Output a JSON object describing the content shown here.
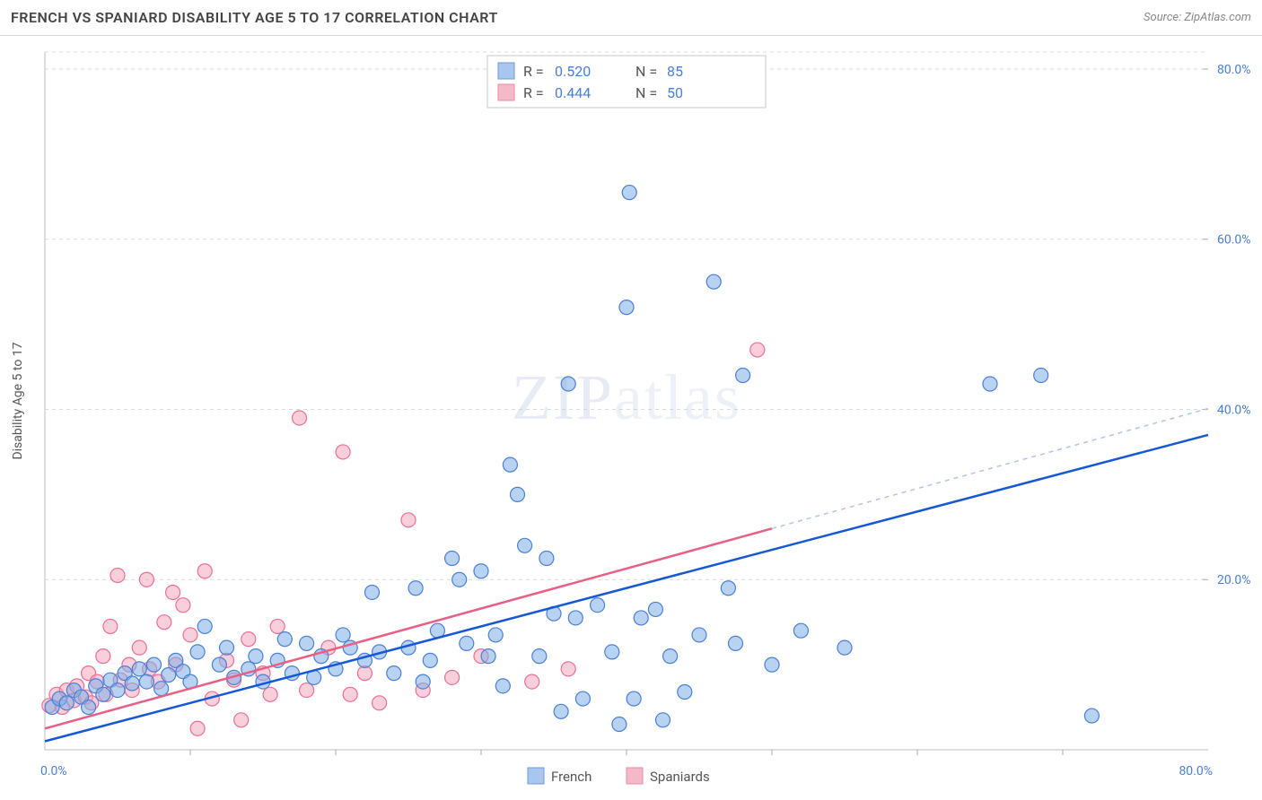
{
  "header": {
    "title": "FRENCH VS SPANIARD DISABILITY AGE 5 TO 17 CORRELATION CHART",
    "source": "Source: ZipAtlas.com"
  },
  "watermark": {
    "part1": "ZIP",
    "part2": "atlas"
  },
  "chart": {
    "type": "scatter",
    "y_axis_label": "Disability Age 5 to 17",
    "xlim": [
      0,
      80
    ],
    "ylim": [
      0,
      82
    ],
    "x_tick_step": 10,
    "y_ticks": [
      20,
      40,
      60,
      80
    ],
    "tick_format_suffix": ".0%",
    "origin_label": "0.0%",
    "x_end_label": "80.0%",
    "background": "#ffffff",
    "grid_color": "#d9d9d9",
    "marker_radius": 8,
    "stats": {
      "r_label": "R =",
      "n_label": "N =",
      "blue": {
        "r": "0.520",
        "n": "85"
      },
      "pink": {
        "r": "0.444",
        "n": "50"
      }
    },
    "legend": {
      "blue_label": "French",
      "pink_label": "Spaniards"
    },
    "series_blue": {
      "color_fill": "#7eaee8",
      "color_stroke": "#4a7fd6",
      "trend": {
        "x1": 0,
        "y1": 1.0,
        "x2": 80,
        "y2": 37.0,
        "color": "#1558d6",
        "width": 2.5
      },
      "points": [
        [
          0.5,
          5
        ],
        [
          1,
          6
        ],
        [
          1.5,
          5.5
        ],
        [
          2,
          7
        ],
        [
          2.5,
          6.2
        ],
        [
          3,
          5
        ],
        [
          3.5,
          7.5
        ],
        [
          4,
          6.5
        ],
        [
          4.5,
          8.2
        ],
        [
          5,
          7
        ],
        [
          5.5,
          9
        ],
        [
          6,
          7.8
        ],
        [
          6.5,
          9.5
        ],
        [
          7,
          8
        ],
        [
          7.5,
          10
        ],
        [
          8,
          7.2
        ],
        [
          8.5,
          8.8
        ],
        [
          9,
          10.5
        ],
        [
          9.5,
          9.2
        ],
        [
          10,
          8
        ],
        [
          10.5,
          11.5
        ],
        [
          11,
          14.5
        ],
        [
          12,
          10
        ],
        [
          12.5,
          12
        ],
        [
          13,
          8.5
        ],
        [
          14,
          9.5
        ],
        [
          14.5,
          11
        ],
        [
          15,
          8
        ],
        [
          16,
          10.5
        ],
        [
          16.5,
          13
        ],
        [
          17,
          9
        ],
        [
          18,
          12.5
        ],
        [
          18.5,
          8.5
        ],
        [
          19,
          11
        ],
        [
          20,
          9.5
        ],
        [
          20.5,
          13.5
        ],
        [
          21,
          12
        ],
        [
          22,
          10.5
        ],
        [
          22.5,
          18.5
        ],
        [
          23,
          11.5
        ],
        [
          24,
          9
        ],
        [
          25,
          12
        ],
        [
          25.5,
          19
        ],
        [
          26,
          8
        ],
        [
          26.5,
          10.5
        ],
        [
          27,
          14
        ],
        [
          28,
          22.5
        ],
        [
          28.5,
          20
        ],
        [
          29,
          12.5
        ],
        [
          30,
          21
        ],
        [
          30.5,
          11
        ],
        [
          31,
          13.5
        ],
        [
          31.5,
          7.5
        ],
        [
          32,
          33.5
        ],
        [
          32.5,
          30
        ],
        [
          33,
          24
        ],
        [
          34,
          11
        ],
        [
          34.5,
          22.5
        ],
        [
          35,
          16
        ],
        [
          35.5,
          4.5
        ],
        [
          36,
          43
        ],
        [
          36.5,
          15.5
        ],
        [
          37,
          6
        ],
        [
          38,
          17
        ],
        [
          39,
          11.5
        ],
        [
          39.5,
          3
        ],
        [
          40,
          52
        ],
        [
          40.2,
          65.5
        ],
        [
          40.5,
          6
        ],
        [
          41,
          15.5
        ],
        [
          42,
          16.5
        ],
        [
          42.5,
          3.5
        ],
        [
          43,
          11
        ],
        [
          44,
          6.8
        ],
        [
          45,
          13.5
        ],
        [
          46,
          55
        ],
        [
          47,
          19
        ],
        [
          48,
          44
        ],
        [
          50,
          10
        ],
        [
          52,
          14
        ],
        [
          55,
          12
        ],
        [
          65,
          43
        ],
        [
          68.5,
          44
        ],
        [
          72,
          4
        ],
        [
          47.5,
          12.5
        ]
      ]
    },
    "series_pink": {
      "color_fill": "#f2a8bb",
      "color_stroke": "#eb6f94",
      "trend": {
        "x1": 0,
        "y1": 2.5,
        "x2": 50,
        "y2": 26.0,
        "color": "#e85f85",
        "width": 2.5
      },
      "points": [
        [
          0.3,
          5.2
        ],
        [
          0.8,
          6.5
        ],
        [
          1.2,
          5
        ],
        [
          1.5,
          7
        ],
        [
          2,
          5.8
        ],
        [
          2.2,
          7.5
        ],
        [
          2.8,
          6.2
        ],
        [
          3,
          9
        ],
        [
          3.2,
          5.5
        ],
        [
          3.6,
          8
        ],
        [
          4,
          11
        ],
        [
          4.2,
          6.5
        ],
        [
          4.5,
          14.5
        ],
        [
          5,
          20.5
        ],
        [
          5.2,
          8.2
        ],
        [
          5.8,
          10
        ],
        [
          6,
          7
        ],
        [
          6.5,
          12
        ],
        [
          7,
          20
        ],
        [
          7.2,
          9.5
        ],
        [
          7.8,
          8
        ],
        [
          8.2,
          15
        ],
        [
          8.8,
          18.5
        ],
        [
          9,
          10
        ],
        [
          9.5,
          17
        ],
        [
          10,
          13.5
        ],
        [
          10.5,
          2.5
        ],
        [
          11,
          21
        ],
        [
          11.5,
          6
        ],
        [
          12.5,
          10.5
        ],
        [
          13,
          8.2
        ],
        [
          13.5,
          3.5
        ],
        [
          14,
          13
        ],
        [
          15,
          9
        ],
        [
          15.5,
          6.5
        ],
        [
          16,
          14.5
        ],
        [
          17.5,
          39
        ],
        [
          18,
          7
        ],
        [
          19.5,
          12
        ],
        [
          20.5,
          35
        ],
        [
          21,
          6.5
        ],
        [
          22,
          9
        ],
        [
          23,
          5.5
        ],
        [
          25,
          27
        ],
        [
          26,
          7
        ],
        [
          28,
          8.5
        ],
        [
          30,
          11
        ],
        [
          33.5,
          8
        ],
        [
          36,
          9.5
        ],
        [
          49,
          47
        ]
      ]
    }
  }
}
